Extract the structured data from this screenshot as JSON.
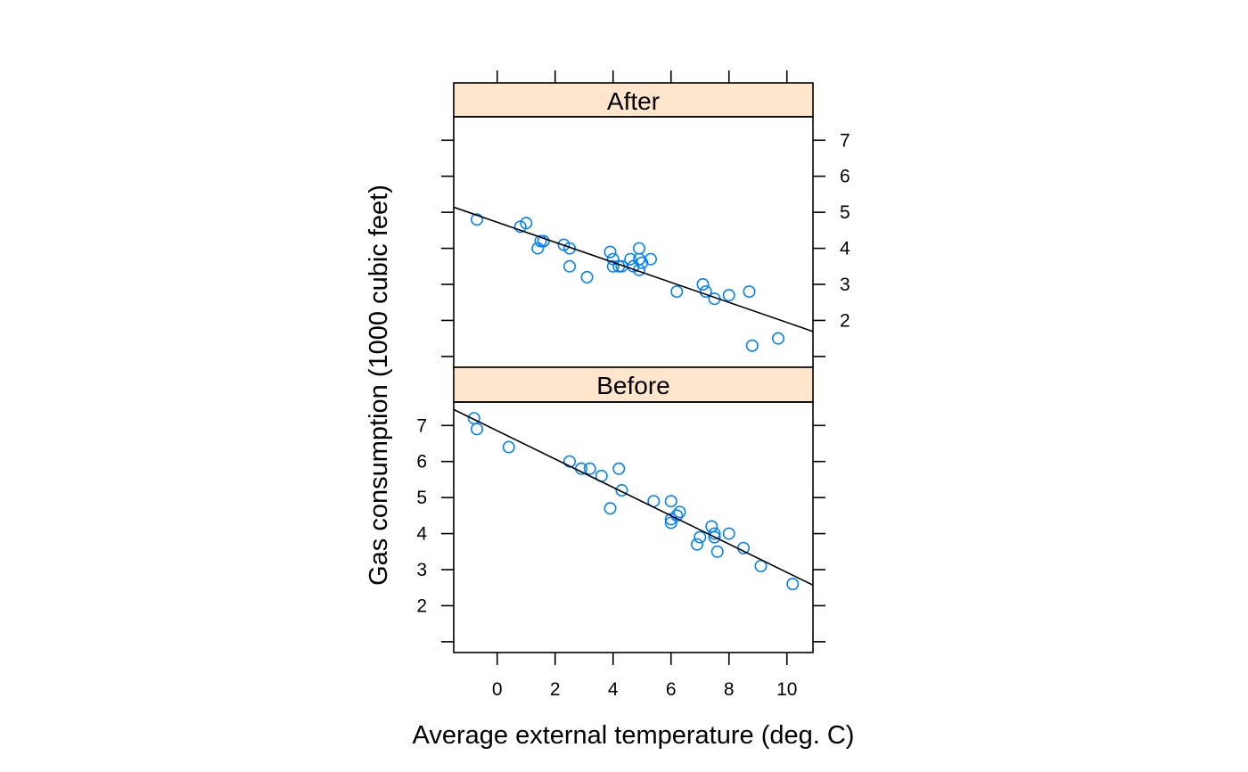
{
  "chart_data": {
    "type": "scatter",
    "xlabel": "Average external temperature (deg. C)",
    "ylabel": "Gas consumption  (1000 cubic feet)",
    "xlim": [
      -1.5,
      10.9
    ],
    "ylim": [
      0.7,
      7.65
    ],
    "x_ticks": [
      0,
      2,
      4,
      6,
      8,
      10
    ],
    "y_ticks": [
      1,
      2,
      3,
      4,
      5,
      6,
      7
    ],
    "y_tick_labels": [
      "2",
      "3",
      "4",
      "5",
      "6",
      "7"
    ],
    "point_color": "#0080ff",
    "strip_color": "#ffe5cc",
    "panels": [
      {
        "name": "After",
        "points": [
          [
            -0.7,
            4.8
          ],
          [
            0.8,
            4.6
          ],
          [
            1.0,
            4.7
          ],
          [
            1.4,
            4.0
          ],
          [
            1.5,
            4.2
          ],
          [
            1.6,
            4.2
          ],
          [
            2.3,
            4.1
          ],
          [
            2.5,
            4.0
          ],
          [
            2.5,
            3.5
          ],
          [
            3.1,
            3.2
          ],
          [
            3.9,
            3.9
          ],
          [
            4.0,
            3.5
          ],
          [
            4.0,
            3.7
          ],
          [
            4.2,
            3.5
          ],
          [
            4.3,
            3.5
          ],
          [
            4.6,
            3.7
          ],
          [
            4.7,
            3.5
          ],
          [
            4.9,
            3.4
          ],
          [
            4.9,
            3.7
          ],
          [
            4.9,
            4.0
          ],
          [
            5.0,
            3.6
          ],
          [
            5.3,
            3.7
          ],
          [
            6.2,
            2.8
          ],
          [
            7.1,
            3.0
          ],
          [
            7.2,
            2.8
          ],
          [
            7.5,
            2.6
          ],
          [
            8.0,
            2.7
          ],
          [
            8.7,
            2.8
          ],
          [
            8.8,
            1.3
          ],
          [
            9.7,
            1.5
          ]
        ],
        "fit": {
          "intercept": 4.724,
          "slope": -0.278
        }
      },
      {
        "name": "Before",
        "points": [
          [
            -0.8,
            7.2
          ],
          [
            -0.7,
            6.9
          ],
          [
            0.4,
            6.4
          ],
          [
            2.5,
            6.0
          ],
          [
            2.9,
            5.8
          ],
          [
            3.2,
            5.8
          ],
          [
            3.6,
            5.6
          ],
          [
            3.9,
            4.7
          ],
          [
            4.2,
            5.8
          ],
          [
            4.3,
            5.2
          ],
          [
            5.4,
            4.9
          ],
          [
            6.0,
            4.9
          ],
          [
            6.0,
            4.3
          ],
          [
            6.0,
            4.4
          ],
          [
            6.2,
            4.5
          ],
          [
            6.3,
            4.6
          ],
          [
            6.9,
            3.7
          ],
          [
            7.0,
            3.9
          ],
          [
            7.4,
            4.2
          ],
          [
            7.5,
            4.0
          ],
          [
            7.5,
            3.9
          ],
          [
            7.6,
            3.5
          ],
          [
            8.0,
            4.0
          ],
          [
            8.5,
            3.6
          ],
          [
            9.1,
            3.1
          ],
          [
            10.2,
            2.6
          ]
        ],
        "fit": {
          "intercept": 6.854,
          "slope": -0.393
        }
      }
    ]
  }
}
